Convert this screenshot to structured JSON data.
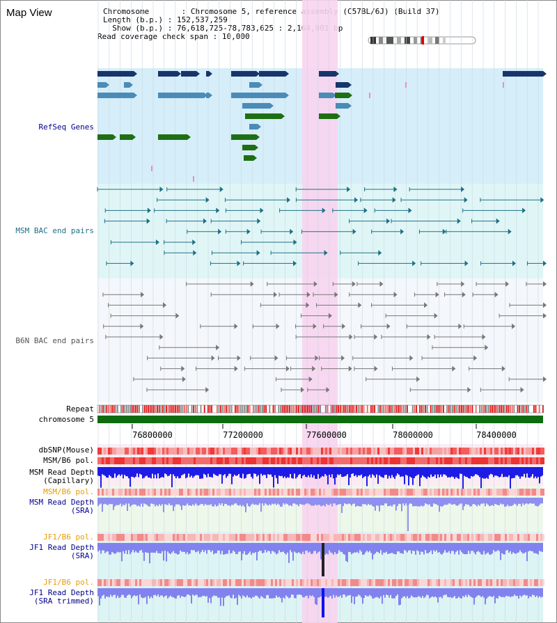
{
  "window": {
    "title": "Map View"
  },
  "info": {
    "chromosome_label": "Chromosome",
    "chromosome_value": "Chromosome 5, reference assembly (C57BL/6J) (Build 37)",
    "length_label": "Length (b.p.)",
    "length_value": "152,537,259",
    "show_label": "Show (b.p.)",
    "show_value": "76,618,725-78,783,625 : 2,164,901 bp",
    "coverage_label": "Read coverage check span",
    "coverage_value": "10,000"
  },
  "tracks": {
    "refseq": "RefSeq Genes",
    "msm_bac": "MSM BAC end pairs",
    "b6n_bac": "B6N BAC end pairs",
    "repeat": "Repeat",
    "chromosome": "chromosome 5",
    "dbsnp": "dbSNP(Mouse)",
    "msm_b6_pol": "MSM/B6 pol.",
    "msm_depth_cap_1": "MSM Read Depth",
    "msm_depth_cap_2": "(Capillary)",
    "msm_b6_pol_2": "MSM/B6 pol.",
    "msm_depth_sra_1": "MSM Read Depth",
    "msm_depth_sra_2": "(SRA)",
    "jf1_b6_pol": "JF1/B6 pol.",
    "jf1_depth_sra_1": "JF1 Read Depth",
    "jf1_depth_sra_2": "(SRA)",
    "jf1_b6_pol_2": "JF1/B6 pol.",
    "jf1_depth_trim_1": "JF1 Read Depth",
    "jf1_depth_trim_2": "(SRA trimmed)"
  },
  "axis": {
    "ticks": [
      "76800000",
      "77200000",
      "77600000",
      "78000000",
      "78400000"
    ]
  },
  "colors": {
    "refseq_bg": "#d6eef9",
    "msm_bg": "#e0f6f6",
    "b6n_bg": "#f4f7fb",
    "highlight": "#f8d4ef",
    "navy": "#17356a",
    "steel": "#4a8bb8",
    "green": "#1e6f14",
    "teal": "#1f6f86",
    "gray": "#777777",
    "label_blue": "#00008b",
    "label_teal": "#1f6f86",
    "label_orange": "#e89b00"
  }
}
